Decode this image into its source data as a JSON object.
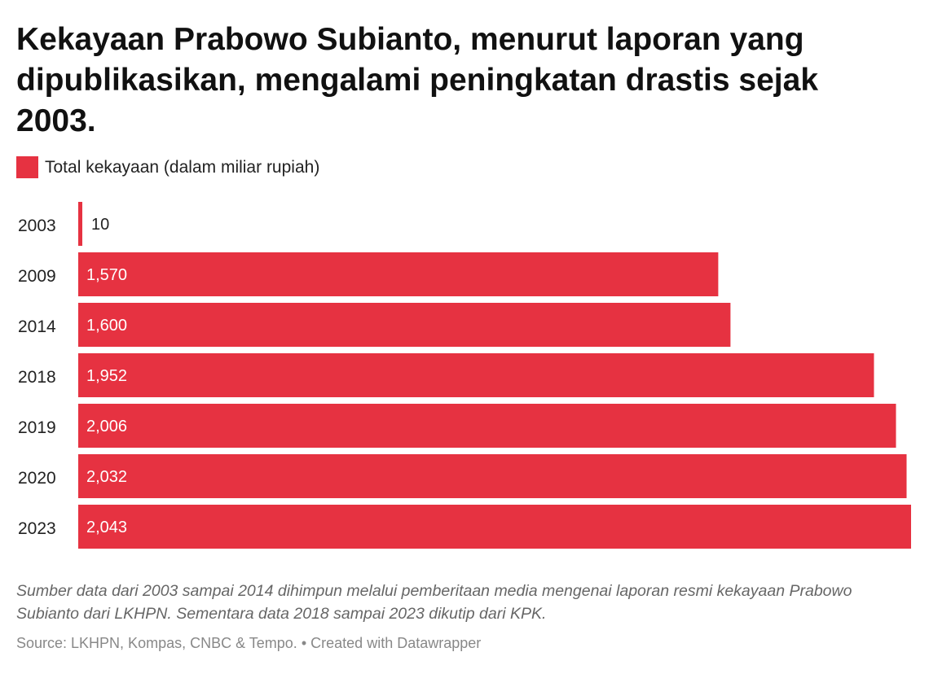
{
  "title": "Kekayaan Prabowo Subianto, menurut laporan yang dipublikasikan, mengalami peningkatan drastis sejak 2003.",
  "legend": {
    "label": "Total kekayaan (dalam miliar rupiah)",
    "color": "#e63241"
  },
  "note": "Sumber data dari 2003 sampai 2014 dihimpun melalui pemberitaan media mengenai laporan resmi kekayaan Prabowo Subianto dari LKHPN. Sementara data 2018 sampai 2023 dikutip dari KPK.",
  "source": {
    "text": "Source: LKHPN, Kompas, CNBC & Tempo.",
    "separator": "•",
    "credit": "Created with Datawrapper"
  },
  "chart_data": {
    "type": "bar",
    "orientation": "horizontal",
    "categories": [
      "2003",
      "2009",
      "2014",
      "2018",
      "2019",
      "2020",
      "2023"
    ],
    "values": [
      10,
      1570,
      1600,
      1952,
      2006,
      2032,
      2043
    ],
    "value_labels": [
      "10",
      "1,570",
      "1,600",
      "1,952",
      "2,006",
      "2,032",
      "2,043"
    ],
    "series": [
      {
        "name": "Total kekayaan (dalam miliar rupiah)",
        "color": "#e63241"
      }
    ],
    "xlim": [
      0,
      2043
    ],
    "grid": false,
    "legend_position": "top-left"
  }
}
